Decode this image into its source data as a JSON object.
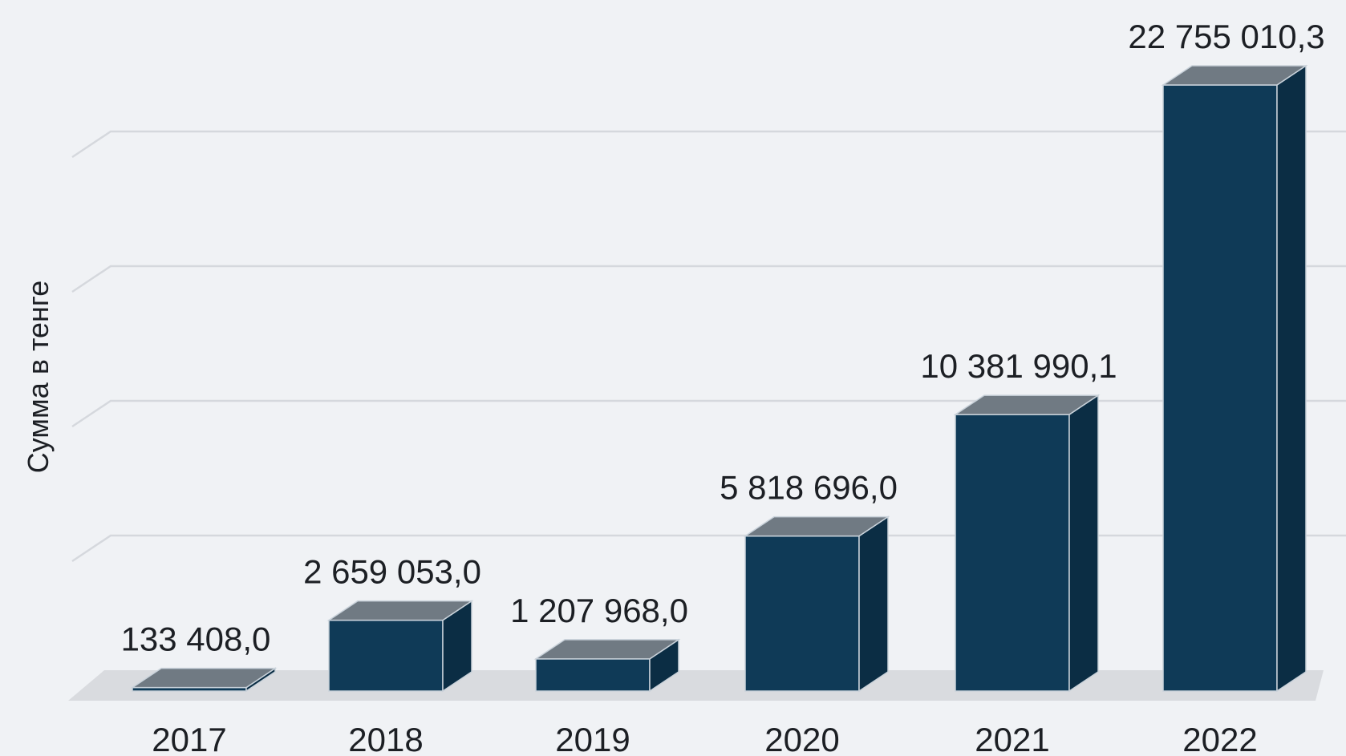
{
  "chart_data": {
    "type": "bar",
    "title": "",
    "xlabel": "",
    "ylabel": "Сумма в тенге",
    "categories": [
      "2017",
      "2018",
      "2019",
      "2020",
      "2021",
      "2022"
    ],
    "values": [
      133408.0,
      2659053.0,
      1207968.0,
      5818696.0,
      10381990.1,
      22755010.3
    ],
    "value_labels": [
      "133 408,0",
      "2 659 053,0",
      "1 207 968,0",
      "5 818 696,0",
      "10 381 990,1",
      "22 755 010,3"
    ],
    "ylim": [
      0,
      24000000
    ],
    "grid": true,
    "style": "3d-column",
    "colors": {
      "bar_front": "#0f3a57",
      "bar_side": "#0b2d44",
      "bar_top": "#707a83",
      "grid": "#d5d8dd",
      "floor": "#d9dbdf",
      "background": "#f0f2f5",
      "text": "#1c1f24"
    }
  }
}
